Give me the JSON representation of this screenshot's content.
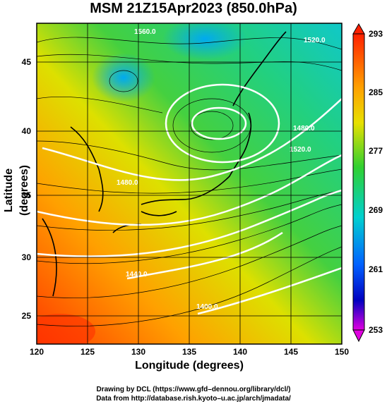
{
  "title": "MSM 21Z15Apr2023 (850.0hPa)",
  "xlabel": "Longitude (degrees)",
  "ylabel": "Latitude  (degrees)",
  "credit_line1": "Drawing by DCL (https://www.gfd–dennou.org/library/dcl/)",
  "credit_line2": "Data from http://database.rish.kyoto–u.ac.jp/arch/jmadata/",
  "x_ticks": [
    "120",
    "125",
    "130",
    "135",
    "140",
    "145",
    "150"
  ],
  "y_ticks": [
    "25",
    "30",
    "35",
    "40",
    "45"
  ],
  "colorbar_ticks": [
    "293",
    "285",
    "277",
    "269",
    "261",
    "253"
  ],
  "contour_labels": [
    "1560.0",
    "1520.0",
    "1480.0",
    "1440.0",
    "1480.0",
    "1520.0",
    "1400.0"
  ],
  "colors": {
    "warm": "#ff5a00",
    "mid": "#e8d800",
    "green": "#33cc44",
    "cyan": "#00ccd0",
    "blue": "#0030ff",
    "magenta": "#e000e0",
    "contour": "#ffffff",
    "coast": "#000000"
  }
}
